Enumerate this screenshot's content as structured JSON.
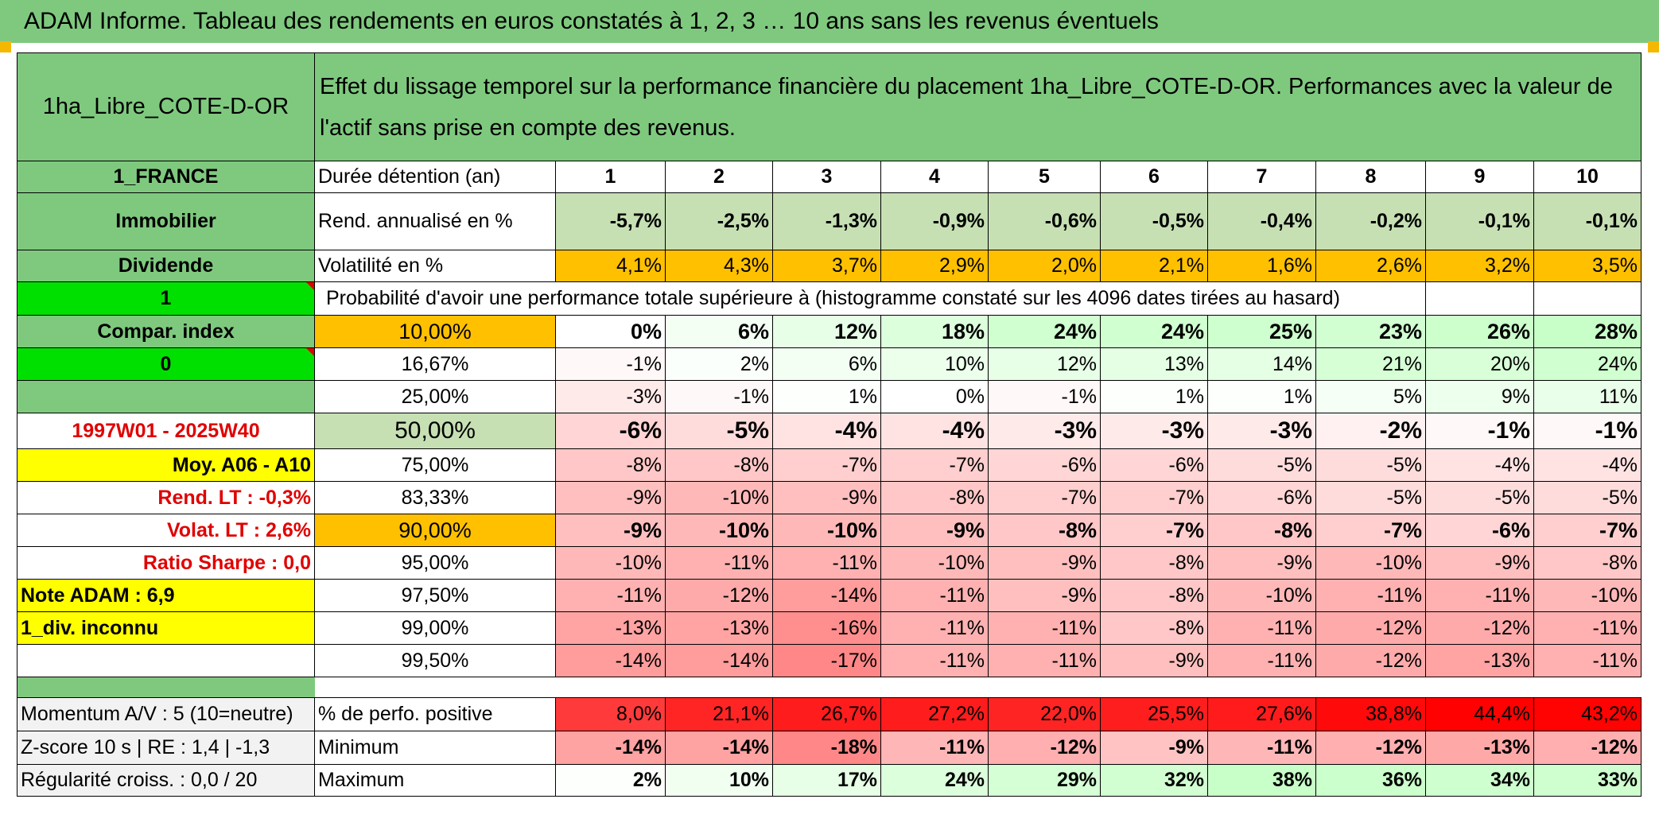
{
  "title": "ADAM Informe. Tableau des rendements en euros constatés à 1, 2, 3 … 10 ans sans les revenus éventuels",
  "asset_name": "1ha_Libre_COTE-D-OR",
  "description": "Effet du lissage temporel sur la performance financière du placement 1ha_Libre_COTE-D-OR. Performances avec la valeur de l'actif sans prise en compte des revenus.",
  "sidebar": {
    "country": "1_FRANCE",
    "category": "Immobilier",
    "income_type": "Dividende",
    "flag1": "1",
    "compar_index": "Compar. index",
    "flag0": "0",
    "period": "1997W01 - 2025W40",
    "moy": "Moy. A06 - A10",
    "rend_lt": "Rend. LT :   -0,3%",
    "volat_lt": "Volat. LT :   2,6%",
    "sharpe": "Ratio Sharpe :    0,0",
    "note": "Note ADAM : 6,9",
    "div": "1_div. inconnu",
    "momentum": "Momentum A/V : 5 (10=neutre)",
    "zscore": "Z-score 10 s | RE : 1,4 | -1,3",
    "regularite": "Régularité croiss. : 0,0 / 20"
  },
  "labels": {
    "duree": "Durée détention (an)",
    "rend": "Rend. annualisé en %",
    "vol": "Volatilité en %",
    "proba": "Probabilité d'avoir une performance totale supérieure à (histogramme constaté sur les 4096 dates tirées au hasard)",
    "pos": "% de perfo. positive",
    "min": "Minimum",
    "max": "Maximum"
  },
  "years": [
    "1",
    "2",
    "3",
    "4",
    "5",
    "6",
    "7",
    "8",
    "9",
    "10"
  ],
  "rend": [
    "-5,7%",
    "-2,5%",
    "-1,3%",
    "-0,9%",
    "-0,6%",
    "-0,5%",
    "-0,4%",
    "-0,2%",
    "-0,1%",
    "-0,1%"
  ],
  "vol": [
    "4,1%",
    "4,3%",
    "3,7%",
    "2,9%",
    "2,0%",
    "2,1%",
    "1,6%",
    "2,6%",
    "3,2%",
    "3,5%"
  ],
  "quantiles": [
    {
      "p": "10,00%",
      "v": [
        "0%",
        "6%",
        "12%",
        "18%",
        "24%",
        "24%",
        "25%",
        "23%",
        "26%",
        "28%"
      ]
    },
    {
      "p": "16,67%",
      "v": [
        "-1%",
        "2%",
        "6%",
        "10%",
        "12%",
        "13%",
        "14%",
        "21%",
        "20%",
        "24%"
      ]
    },
    {
      "p": "25,00%",
      "v": [
        "-3%",
        "-1%",
        "1%",
        "0%",
        "-1%",
        "1%",
        "1%",
        "5%",
        "9%",
        "11%"
      ]
    },
    {
      "p": "50,00%",
      "v": [
        "-6%",
        "-5%",
        "-4%",
        "-4%",
        "-3%",
        "-3%",
        "-3%",
        "-2%",
        "-1%",
        "-1%"
      ]
    },
    {
      "p": "75,00%",
      "v": [
        "-8%",
        "-8%",
        "-7%",
        "-7%",
        "-6%",
        "-6%",
        "-5%",
        "-5%",
        "-4%",
        "-4%"
      ]
    },
    {
      "p": "83,33%",
      "v": [
        "-9%",
        "-10%",
        "-9%",
        "-8%",
        "-7%",
        "-7%",
        "-6%",
        "-5%",
        "-5%",
        "-5%"
      ]
    },
    {
      "p": "90,00%",
      "v": [
        "-9%",
        "-10%",
        "-10%",
        "-9%",
        "-8%",
        "-7%",
        "-8%",
        "-7%",
        "-6%",
        "-7%"
      ]
    },
    {
      "p": "95,00%",
      "v": [
        "-10%",
        "-11%",
        "-11%",
        "-10%",
        "-9%",
        "-8%",
        "-9%",
        "-10%",
        "-9%",
        "-8%"
      ]
    },
    {
      "p": "97,50%",
      "v": [
        "-11%",
        "-12%",
        "-14%",
        "-11%",
        "-9%",
        "-8%",
        "-10%",
        "-11%",
        "-11%",
        "-10%"
      ]
    },
    {
      "p": "99,00%",
      "v": [
        "-13%",
        "-13%",
        "-16%",
        "-11%",
        "-11%",
        "-8%",
        "-11%",
        "-12%",
        "-12%",
        "-11%"
      ]
    },
    {
      "p": "99,50%",
      "v": [
        "-14%",
        "-14%",
        "-17%",
        "-11%",
        "-11%",
        "-9%",
        "-11%",
        "-12%",
        "-13%",
        "-11%"
      ]
    }
  ],
  "pos": [
    "8,0%",
    "21,1%",
    "26,7%",
    "27,2%",
    "22,0%",
    "25,5%",
    "27,6%",
    "38,8%",
    "44,4%",
    "43,2%"
  ],
  "min": [
    "-14%",
    "-14%",
    "-18%",
    "-11%",
    "-12%",
    "-9%",
    "-11%",
    "-12%",
    "-13%",
    "-12%"
  ],
  "max": [
    "2%",
    "10%",
    "17%",
    "24%",
    "29%",
    "32%",
    "38%",
    "36%",
    "34%",
    "33%"
  ],
  "colors": {
    "green": "#7fc97f",
    "bright_green": "#00e000",
    "yellow": "#ffff00",
    "orange": "#ffc000",
    "red": "#e00000"
  }
}
